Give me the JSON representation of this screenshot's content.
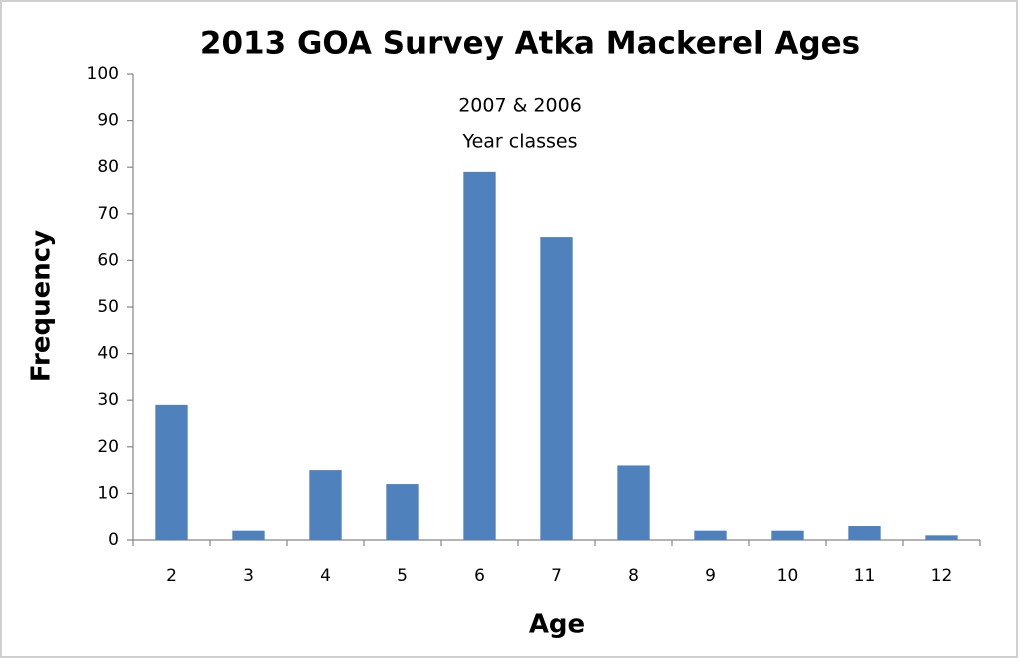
{
  "chart_data": {
    "type": "bar",
    "title": "2013 GOA Survey Atka Mackerel Ages",
    "annotation": [
      "2007 & 2006",
      "Year classes"
    ],
    "x_label": "Age",
    "y_label": "Frequency",
    "categories": [
      2,
      3,
      4,
      5,
      6,
      7,
      8,
      9,
      10,
      11,
      12
    ],
    "values": [
      29,
      2,
      15,
      12,
      79,
      65,
      16,
      2,
      2,
      3,
      1
    ],
    "color": "#4f81bd",
    "ylim": [
      0,
      100
    ],
    "yticks": [
      0,
      10,
      20,
      30,
      40,
      50,
      60,
      70,
      80,
      90,
      100
    ],
    "grid": false
  }
}
